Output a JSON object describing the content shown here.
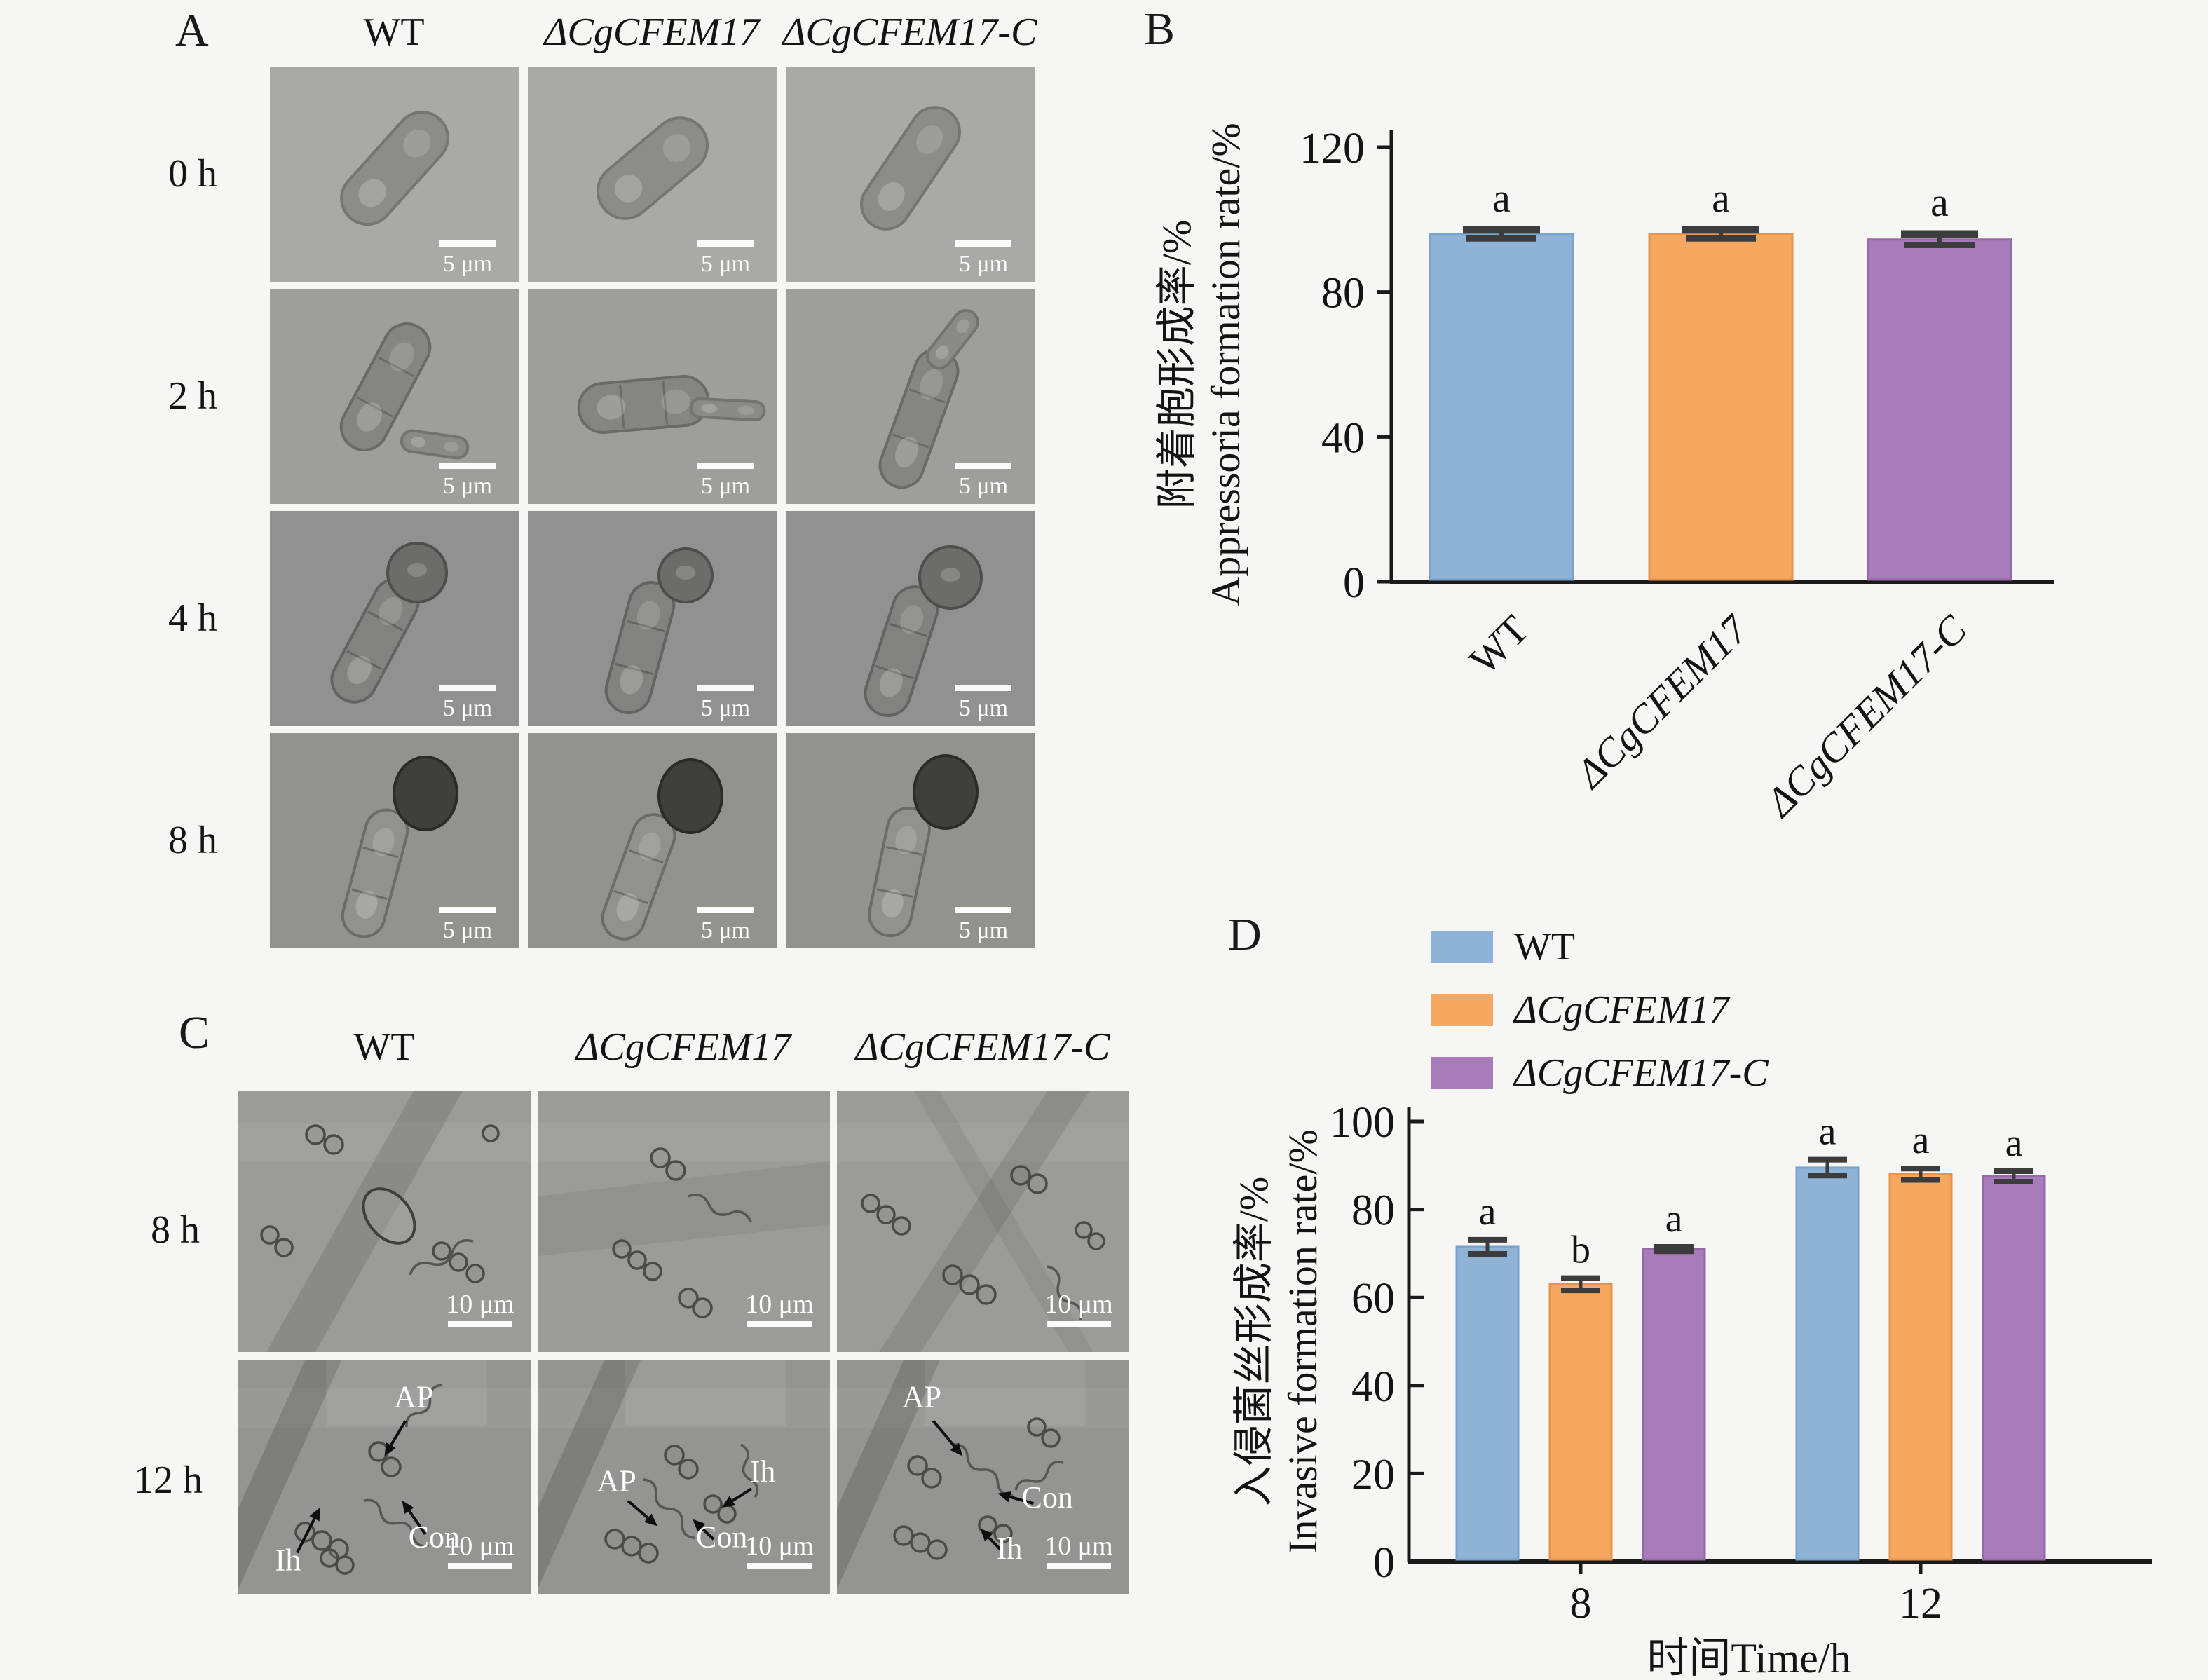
{
  "figure": {
    "background": "#f6f6f4"
  },
  "panel_a": {
    "label": "A",
    "columns": [
      "WT",
      "ΔCgCFEM17",
      "ΔCgCFEM17-C"
    ],
    "rows": [
      "0 h",
      "2 h",
      "4 h",
      "8 h"
    ],
    "scale_bar_label": "5 μm",
    "scene_by_row": [
      "conidium",
      "germ-tube-emergence",
      "appressorium-initiation",
      "mature-appressorium"
    ],
    "row_backgrounds": [
      "#a9a9a7",
      "#9e9e9c",
      "#919191",
      "#92928f"
    ]
  },
  "panel_b": {
    "label": "B"
  },
  "panel_c": {
    "label": "C",
    "columns": [
      "WT",
      "ΔCgCFEM17",
      "ΔCgCFEM17-C"
    ],
    "rows": [
      "8 h",
      "12 h"
    ],
    "scale_bar_label": "10 μm",
    "annotations_12h": [
      [
        {
          "text": "AP",
          "lx": 0.6,
          "ly": 0.2,
          "tx": 0.5,
          "ty": 0.41
        },
        {
          "text": "Con",
          "lx": 0.67,
          "ly": 0.8,
          "tx": 0.56,
          "ty": 0.6
        },
        {
          "text": "Ih",
          "lx": 0.17,
          "ly": 0.9,
          "tx": 0.28,
          "ty": 0.63
        }
      ],
      [
        {
          "text": "AP",
          "lx": 0.27,
          "ly": 0.56,
          "tx": 0.41,
          "ty": 0.71
        },
        {
          "text": "Ih",
          "lx": 0.77,
          "ly": 0.52,
          "tx": 0.63,
          "ty": 0.63
        },
        {
          "text": "Con",
          "lx": 0.63,
          "ly": 0.8,
          "tx": 0.53,
          "ty": 0.68
        }
      ],
      [
        {
          "text": "AP",
          "lx": 0.29,
          "ly": 0.2,
          "tx": 0.43,
          "ty": 0.41
        },
        {
          "text": "Con",
          "lx": 0.72,
          "ly": 0.63,
          "tx": 0.55,
          "ty": 0.57
        },
        {
          "text": "Ih",
          "lx": 0.59,
          "ly": 0.85,
          "tx": 0.49,
          "ty": 0.72
        }
      ]
    ]
  },
  "panel_d": {
    "label": "D"
  },
  "chart_data": [
    {
      "panel": "B",
      "type": "bar",
      "title": "",
      "categories": [
        "WT",
        "ΔCgCFEM17",
        "ΔCgCFEM17-C"
      ],
      "values": [
        96,
        96,
        94.5
      ],
      "errors": [
        1.2,
        1.2,
        1.5
      ],
      "sig_letters": [
        "a",
        "a",
        "a"
      ],
      "bar_colors": [
        "#8fb3d6",
        "#f7a85f",
        "#a87bba"
      ],
      "bar_edge_colors": [
        "#7aa3cc",
        "#e6934b",
        "#9668a8"
      ],
      "ylabel_zh": "附着胞形成率/%",
      "ylabel_en": "Appressoria formation rate/%",
      "xlabel": "",
      "yticks": [
        0,
        40,
        80,
        120
      ],
      "ylim": [
        0,
        120
      ],
      "xtick_rotation": 45,
      "grid": false,
      "legend_position": "none"
    },
    {
      "panel": "D",
      "type": "grouped-bar",
      "title": "",
      "categories": [
        "8",
        "12"
      ],
      "series": [
        {
          "name": "WT",
          "color": "#8fb3d6",
          "edge": "#7aa3cc",
          "values": [
            71.5,
            89.5
          ],
          "errors": [
            1.6,
            1.8
          ],
          "letters": [
            "a",
            "a"
          ]
        },
        {
          "name": "ΔCgCFEM17",
          "color": "#f7a85f",
          "edge": "#e6934b",
          "values": [
            63,
            88
          ],
          "errors": [
            1.4,
            1.3
          ],
          "letters": [
            "b",
            "a"
          ]
        },
        {
          "name": "ΔCgCFEM17-C",
          "color": "#a87bba",
          "edge": "#9668a8",
          "values": [
            71,
            87.5
          ],
          "errors": [
            0.5,
            1.2
          ],
          "letters": [
            "a",
            "a"
          ]
        }
      ],
      "ylabel_zh": "入侵菌丝形成率/%",
      "ylabel_en": "Invasive formation rate/%",
      "xlabel": "时间Time/h",
      "yticks": [
        0,
        20,
        40,
        60,
        80,
        100
      ],
      "ylim": [
        0,
        100
      ],
      "grid": false,
      "legend_position": "top-left-outside"
    }
  ]
}
